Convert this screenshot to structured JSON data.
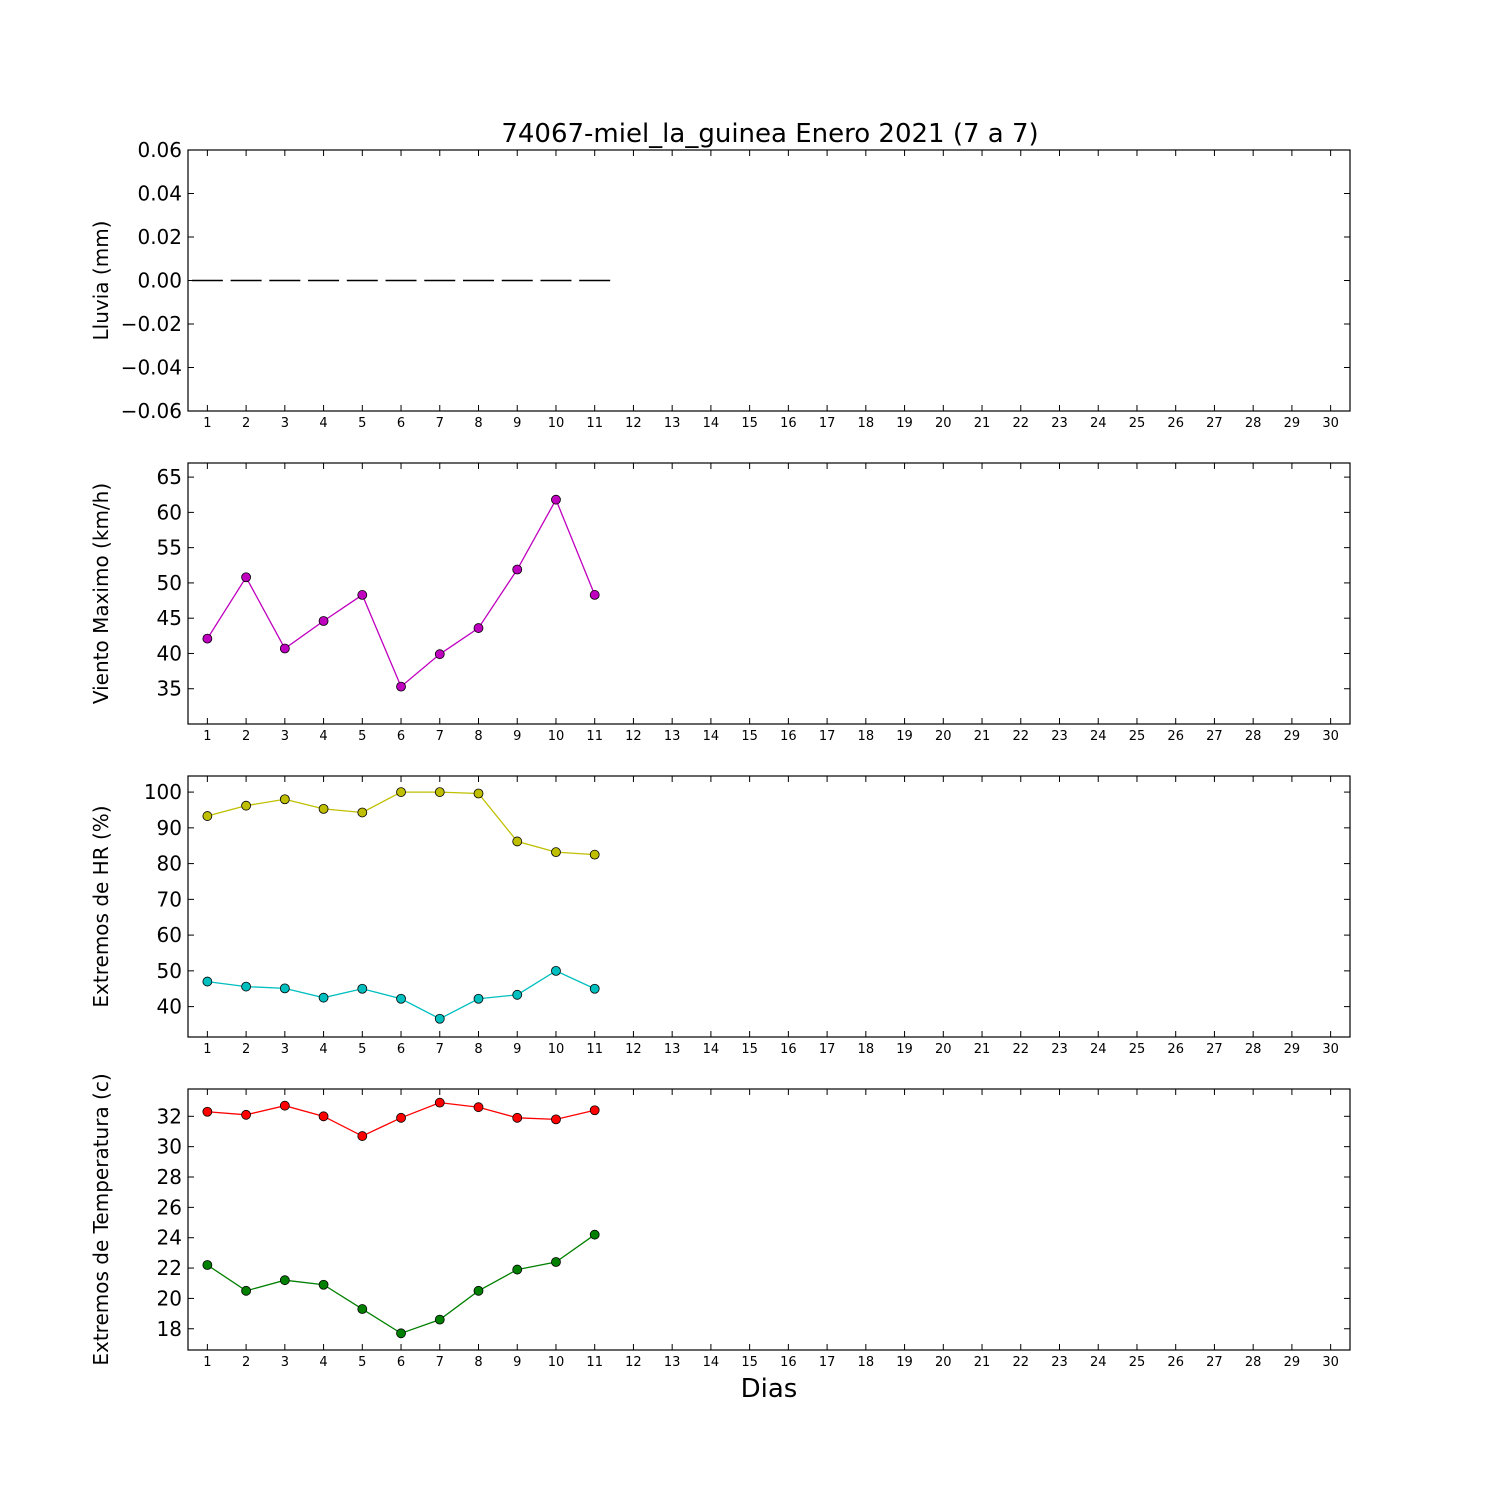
{
  "title": "74067-miel_la_guinea Enero 2021  (7 a 7)",
  "xlabel": "Dias",
  "chart_data": [
    {
      "type": "line",
      "ylabel": "Lluvia (mm)",
      "ylim": [
        -0.06,
        0.06
      ],
      "yticks": [
        -0.06,
        -0.04,
        -0.02,
        0.0,
        0.02,
        0.04,
        0.06
      ],
      "ytick_labels": [
        "−0.06",
        "−0.04",
        "−0.02",
        "0.00",
        "0.02",
        "0.04",
        "0.06"
      ],
      "xlim": [
        0.5,
        30.5
      ],
      "x_ticks": [
        1,
        2,
        3,
        4,
        5,
        6,
        7,
        8,
        9,
        10,
        11,
        12,
        13,
        14,
        15,
        16,
        17,
        18,
        19,
        20,
        21,
        22,
        23,
        24,
        25,
        26,
        27,
        28,
        29,
        30
      ],
      "style": "bars",
      "series": [
        {
          "color": "#000000",
          "x": [
            1,
            2,
            3,
            4,
            5,
            6,
            7,
            8,
            9,
            10,
            11
          ],
          "values": [
            0,
            0,
            0,
            0,
            0,
            0,
            0,
            0,
            0,
            0,
            0
          ]
        }
      ]
    },
    {
      "type": "line",
      "ylabel": "Viento Maximo (km/h)",
      "ylim": [
        30,
        67
      ],
      "yticks": [
        35,
        40,
        45,
        50,
        55,
        60,
        65
      ],
      "ytick_labels": [
        "35",
        "40",
        "45",
        "50",
        "55",
        "60",
        "65"
      ],
      "xlim": [
        0.5,
        30.5
      ],
      "x_ticks": [
        1,
        2,
        3,
        4,
        5,
        6,
        7,
        8,
        9,
        10,
        11,
        12,
        13,
        14,
        15,
        16,
        17,
        18,
        19,
        20,
        21,
        22,
        23,
        24,
        25,
        26,
        27,
        28,
        29,
        30
      ],
      "series": [
        {
          "color": "#bf00bf",
          "x": [
            1,
            2,
            3,
            4,
            5,
            6,
            7,
            8,
            9,
            10,
            11
          ],
          "values": [
            42.1,
            50.8,
            40.7,
            44.6,
            48.3,
            35.3,
            39.9,
            43.6,
            51.9,
            61.8,
            48.3
          ]
        }
      ]
    },
    {
      "type": "line",
      "ylabel": "Extremos de HR (%)",
      "ylim": [
        31.5,
        104.5
      ],
      "yticks": [
        40,
        50,
        60,
        70,
        80,
        90,
        100
      ],
      "ytick_labels": [
        "40",
        "50",
        "60",
        "70",
        "80",
        "90",
        "100"
      ],
      "xlim": [
        0.5,
        30.5
      ],
      "x_ticks": [
        1,
        2,
        3,
        4,
        5,
        6,
        7,
        8,
        9,
        10,
        11,
        12,
        13,
        14,
        15,
        16,
        17,
        18,
        19,
        20,
        21,
        22,
        23,
        24,
        25,
        26,
        27,
        28,
        29,
        30
      ],
      "series": [
        {
          "color": "#bfbf00",
          "x": [
            1,
            2,
            3,
            4,
            5,
            6,
            7,
            8,
            9,
            10,
            11
          ],
          "values": [
            93.3,
            96.2,
            98.0,
            95.3,
            94.3,
            100.0,
            100.0,
            99.6,
            86.2,
            83.2,
            82.5
          ]
        },
        {
          "color": "#00bfbf",
          "x": [
            1,
            2,
            3,
            4,
            5,
            6,
            7,
            8,
            9,
            10,
            11
          ],
          "values": [
            47.0,
            45.6,
            45.1,
            42.5,
            45.0,
            42.2,
            36.6,
            42.2,
            43.3,
            50.0,
            45.0
          ]
        }
      ]
    },
    {
      "type": "line",
      "ylabel": "Extremos de Temperatura (c)",
      "ylim": [
        16.6,
        33.8
      ],
      "yticks": [
        18,
        20,
        22,
        24,
        26,
        28,
        30,
        32
      ],
      "ytick_labels": [
        "18",
        "20",
        "22",
        "24",
        "26",
        "28",
        "30",
        "32"
      ],
      "xlim": [
        0.5,
        30.5
      ],
      "x_ticks": [
        1,
        2,
        3,
        4,
        5,
        6,
        7,
        8,
        9,
        10,
        11,
        12,
        13,
        14,
        15,
        16,
        17,
        18,
        19,
        20,
        21,
        22,
        23,
        24,
        25,
        26,
        27,
        28,
        29,
        30
      ],
      "series": [
        {
          "color": "#ff0000",
          "x": [
            1,
            2,
            3,
            4,
            5,
            6,
            7,
            8,
            9,
            10,
            11
          ],
          "values": [
            32.3,
            32.1,
            32.7,
            32.0,
            30.7,
            31.9,
            32.9,
            32.6,
            31.9,
            31.8,
            32.4
          ]
        },
        {
          "color": "#008000",
          "x": [
            1,
            2,
            3,
            4,
            5,
            6,
            7,
            8,
            9,
            10,
            11
          ],
          "values": [
            22.2,
            20.5,
            21.2,
            20.9,
            19.3,
            17.7,
            18.6,
            20.5,
            21.9,
            22.4,
            24.2
          ]
        }
      ]
    }
  ]
}
